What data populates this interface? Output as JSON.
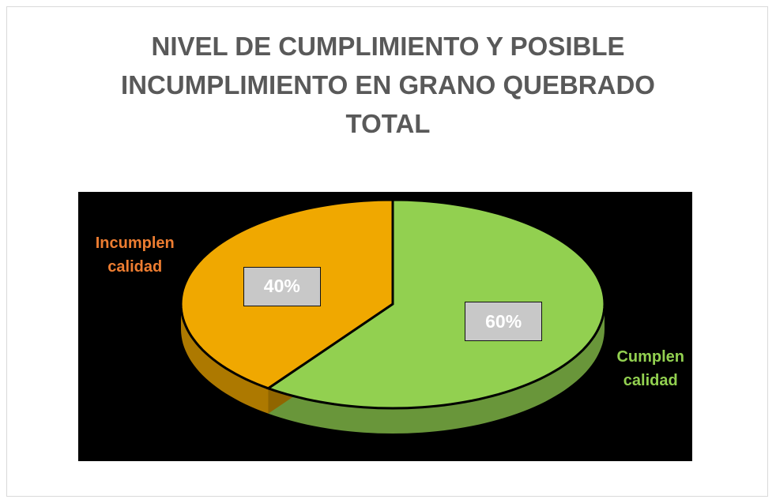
{
  "chart_data": {
    "type": "pie",
    "title": "NIVEL DE CUMPLIMIENTO Y POSIBLE INCUMPLIMIENTO EN GRANO QUEBRADO TOTAL",
    "categories": [
      "Cumplen calidad",
      "Incumplen calidad"
    ],
    "values": [
      60,
      40
    ],
    "value_labels": [
      "60%",
      "40%"
    ],
    "colors": [
      "#92d050",
      "#f0a800"
    ],
    "label_colors": [
      "#92d050",
      "#ed7d31"
    ],
    "start_angle": 0,
    "direction": "clockwise",
    "3d": true,
    "background": "#000000"
  }
}
